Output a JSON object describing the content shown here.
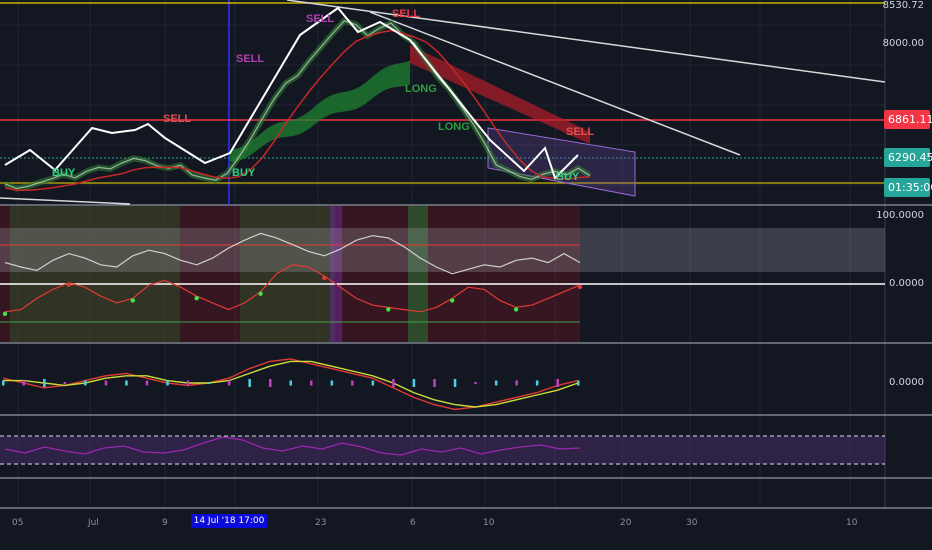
{
  "chart_data": [
    {
      "type": "line",
      "title": "",
      "x_axis_labels": [
        "05",
        "Jul",
        "9",
        "",
        "23",
        "",
        "6",
        "10",
        "20",
        "30",
        "10"
      ],
      "cursor_time_label": "14 Jul '18  17:00",
      "price_axis": {
        "ticks": [
          "8000.00"
        ],
        "top_partial": "8530.72"
      },
      "price_tags": [
        {
          "label": "6861.11",
          "color": "#f23645",
          "text_color": "#ffffff",
          "price": 6861.11
        },
        {
          "label": "6290.45",
          "color": "#26a69a",
          "text_color": "#ffffff",
          "price": 6290.45
        },
        {
          "label": "01:35:00",
          "color": "#26a69a",
          "text_color": "#ffffff"
        }
      ],
      "signals": [
        "SELL",
        "BUY",
        "SELL",
        "LONG",
        "SELL",
        "SELL",
        "LONG",
        "BUY",
        "SELL",
        "BUY"
      ],
      "price_series": [
        6180,
        6120,
        6150,
        6200,
        6250,
        6310,
        6260,
        6350,
        6400,
        6380,
        6460,
        6520,
        6490,
        6420,
        6390,
        6430,
        6300,
        6260,
        6230,
        6320,
        6540,
        6780,
        7050,
        7310,
        7520,
        7620,
        7820,
        8000,
        8180,
        8350,
        8300,
        8150,
        8250,
        8320,
        8160,
        8050,
        7820,
        7600,
        7430,
        7210,
        6980,
        6720,
        6430,
        6360,
        6280,
        6240,
        6310,
        6350,
        6300,
        6390,
        6290
      ]
    },
    {
      "type": "line",
      "title": "",
      "axis_ticks": [
        "100.0000",
        "0.0000"
      ],
      "series": [
        {
          "values": [
            62,
            58,
            55,
            64,
            70,
            66,
            60,
            58,
            68,
            73,
            70,
            64,
            60,
            66,
            75,
            82,
            88,
            84,
            78,
            72,
            68,
            74,
            82,
            86,
            84,
            76,
            66,
            58,
            52,
            56,
            60,
            58,
            64,
            66,
            62,
            70,
            62
          ]
        },
        {
          "values": [
            18,
            20,
            30,
            38,
            44,
            40,
            32,
            26,
            30,
            42,
            46,
            40,
            32,
            26,
            20,
            26,
            36,
            52,
            60,
            58,
            50,
            40,
            30,
            24,
            22,
            20,
            18,
            22,
            30,
            40,
            38,
            28,
            22,
            24,
            30,
            36,
            42
          ]
        }
      ]
    },
    {
      "type": "line",
      "title": "",
      "axis_ticks": [
        "0.0000"
      ],
      "series": [
        {
          "values": [
            2,
            0,
            -2,
            -1,
            1,
            3,
            4,
            2,
            0,
            -1,
            0,
            2,
            6,
            9,
            10,
            8,
            6,
            4,
            2,
            -2,
            -6,
            -9,
            -11,
            -10,
            -8,
            -6,
            -4,
            -1,
            1
          ]
        },
        {
          "values": [
            1,
            1,
            0,
            -1,
            0,
            2,
            3,
            3,
            1,
            0,
            0,
            1,
            4,
            7,
            9,
            9,
            7,
            5,
            3,
            0,
            -4,
            -7,
            -9,
            -10,
            -9,
            -7,
            -5,
            -3,
            0
          ]
        }
      ]
    },
    {
      "type": "line",
      "title": "",
      "series": [
        {
          "values": [
            58,
            50,
            62,
            54,
            48,
            60,
            64,
            52,
            50,
            56,
            70,
            82,
            76,
            60,
            54,
            64,
            58,
            70,
            62,
            50,
            46,
            58,
            52,
            60,
            48,
            56,
            62,
            66,
            58,
            60
          ]
        }
      ]
    }
  ]
}
